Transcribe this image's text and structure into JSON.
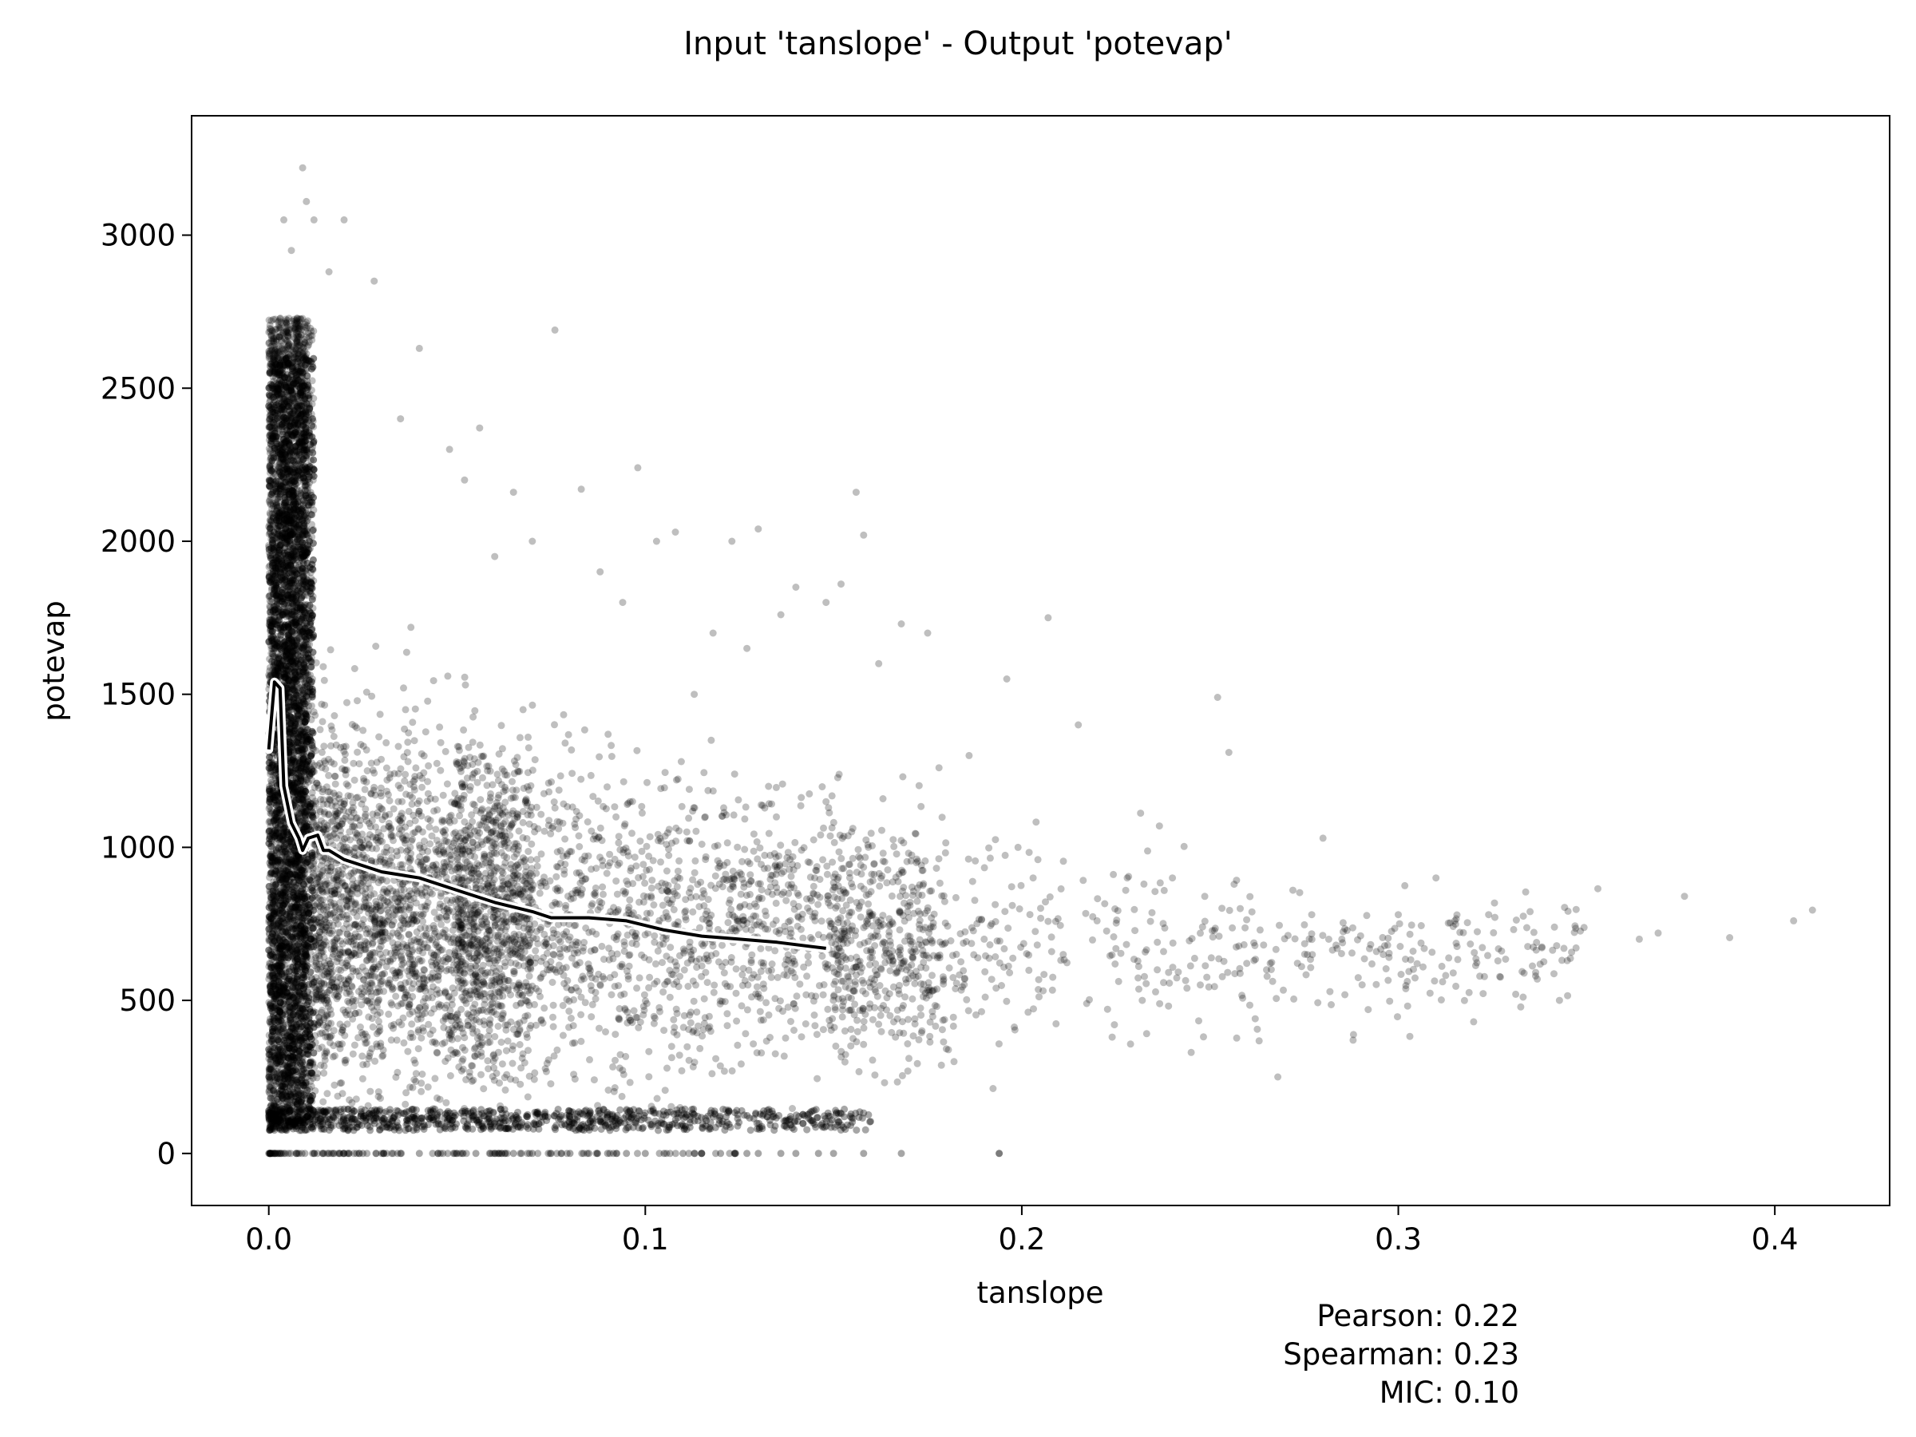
{
  "chart_data": {
    "type": "scatter",
    "title": "Input 'tanslope' - Output 'potevap'",
    "xlabel": "tanslope",
    "ylabel": "potevap",
    "xlim": [
      -0.0205,
      0.4305
    ],
    "ylim": [
      -170,
      3390
    ],
    "xticks": [
      0.0,
      0.1,
      0.2,
      0.3,
      0.4
    ],
    "xtick_labels": [
      "0.0",
      "0.1",
      "0.2",
      "0.3",
      "0.4"
    ],
    "yticks": [
      0,
      500,
      1000,
      1500,
      2000,
      2500,
      3000
    ],
    "ytick_labels": [
      "0",
      "500",
      "1000",
      "1500",
      "2000",
      "2500",
      "3000"
    ],
    "grid": false,
    "point_color": "#000000",
    "point_opacity": 0.25,
    "series": [
      {
        "kind": "scatter-sample",
        "points": [
          [
            0.405,
            760
          ],
          [
            0.41,
            795
          ],
          [
            0.388,
            705
          ],
          [
            0.376,
            840
          ],
          [
            0.369,
            720
          ],
          [
            0.364,
            700
          ],
          [
            0.353,
            865
          ],
          [
            0.344,
            670
          ],
          [
            0.335,
            790
          ],
          [
            0.324,
            780
          ],
          [
            0.32,
            430
          ],
          [
            0.315,
            760
          ],
          [
            0.31,
            900
          ],
          [
            0.305,
            620
          ],
          [
            0.3,
            780
          ],
          [
            0.296,
            650
          ],
          [
            0.292,
            470
          ],
          [
            0.288,
            370
          ],
          [
            0.285,
            700
          ],
          [
            0.28,
            1030
          ],
          [
            0.277,
            780
          ],
          [
            0.272,
            860
          ],
          [
            0.268,
            250
          ],
          [
            0.265,
            600
          ],
          [
            0.262,
            440
          ],
          [
            0.258,
            800
          ],
          [
            0.255,
            1310
          ],
          [
            0.252,
            1490
          ],
          [
            0.248,
            740
          ],
          [
            0.245,
            330
          ],
          [
            0.24,
            900
          ],
          [
            0.236,
            690
          ],
          [
            0.232,
            500
          ],
          [
            0.228,
            900
          ],
          [
            0.224,
            380
          ],
          [
            0.22,
            760
          ],
          [
            0.215,
            1400
          ],
          [
            0.211,
            650
          ],
          [
            0.207,
            1750
          ],
          [
            0.203,
            900
          ],
          [
            0.199,
            1000
          ],
          [
            0.196,
            1550
          ],
          [
            0.194,
            0
          ],
          [
            0.19,
            700
          ],
          [
            0.186,
            1300
          ],
          [
            0.182,
            300
          ],
          [
            0.178,
            1260
          ],
          [
            0.175,
            1700
          ],
          [
            0.172,
            950
          ],
          [
            0.168,
            1730
          ],
          [
            0.165,
            450
          ],
          [
            0.162,
            1600
          ],
          [
            0.158,
            2020
          ],
          [
            0.156,
            2160
          ],
          [
            0.152,
            1860
          ],
          [
            0.148,
            1800
          ],
          [
            0.145,
            900
          ],
          [
            0.14,
            1850
          ],
          [
            0.136,
            1760
          ],
          [
            0.13,
            2040
          ],
          [
            0.127,
            1650
          ],
          [
            0.123,
            2000
          ],
          [
            0.118,
            1700
          ],
          [
            0.113,
            1500
          ],
          [
            0.108,
            2030
          ],
          [
            0.103,
            2000
          ],
          [
            0.098,
            2240
          ],
          [
            0.094,
            1800
          ],
          [
            0.088,
            1900
          ],
          [
            0.083,
            2170
          ],
          [
            0.076,
            2690
          ],
          [
            0.07,
            2000
          ],
          [
            0.065,
            2160
          ],
          [
            0.06,
            1950
          ],
          [
            0.056,
            2370
          ],
          [
            0.052,
            2200
          ],
          [
            0.048,
            2300
          ],
          [
            0.04,
            2630
          ],
          [
            0.035,
            2400
          ],
          [
            0.028,
            2850
          ],
          [
            0.02,
            3050
          ],
          [
            0.016,
            2880
          ],
          [
            0.012,
            3050
          ],
          [
            0.01,
            3110
          ],
          [
            0.009,
            3220
          ],
          [
            0.006,
            2950
          ],
          [
            0.004,
            3050
          ]
        ]
      },
      {
        "kind": "zero-row",
        "x": [
          0.0,
          0.004,
          0.008,
          0.012,
          0.016,
          0.02,
          0.025,
          0.03,
          0.035,
          0.04,
          0.045,
          0.05,
          0.055,
          0.06,
          0.065,
          0.07,
          0.075,
          0.08,
          0.085,
          0.09,
          0.095,
          0.1,
          0.105,
          0.11,
          0.113,
          0.115,
          0.12,
          0.124,
          0.127,
          0.13,
          0.136,
          0.14,
          0.146,
          0.15,
          0.158,
          0.168,
          0.194
        ],
        "y": 0
      },
      {
        "kind": "trend-line",
        "line_color": "#000000",
        "outline_color": "#ffffff",
        "points": [
          [
            0.0,
            1320
          ],
          [
            0.0015,
            1540
          ],
          [
            0.003,
            1520
          ],
          [
            0.004,
            1200
          ],
          [
            0.006,
            1080
          ],
          [
            0.008,
            1030
          ],
          [
            0.009,
            990
          ],
          [
            0.0105,
            1030
          ],
          [
            0.013,
            1040
          ],
          [
            0.0145,
            990
          ],
          [
            0.016,
            990
          ],
          [
            0.02,
            960
          ],
          [
            0.025,
            940
          ],
          [
            0.03,
            920
          ],
          [
            0.035,
            910
          ],
          [
            0.04,
            900
          ],
          [
            0.05,
            860
          ],
          [
            0.06,
            820
          ],
          [
            0.07,
            790
          ],
          [
            0.075,
            770
          ],
          [
            0.085,
            770
          ],
          [
            0.095,
            760
          ],
          [
            0.105,
            730
          ],
          [
            0.115,
            710
          ],
          [
            0.125,
            700
          ],
          [
            0.135,
            690
          ],
          [
            0.148,
            670
          ]
        ]
      }
    ],
    "annotations": {
      "pearson": "Pearson: 0.22",
      "spearman": "Spearman: 0.23",
      "mic": "MIC: 0.10"
    }
  }
}
